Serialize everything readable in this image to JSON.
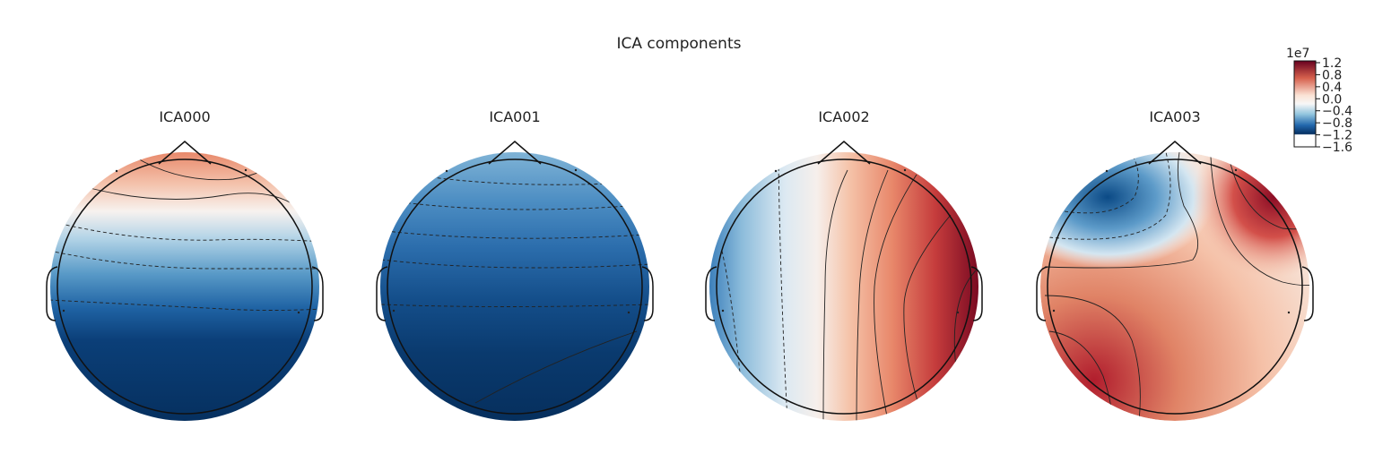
{
  "figure": {
    "title": "ICA components"
  },
  "chart_data": {
    "type": "heatmap",
    "title": "ICA components",
    "colormap": "RdBu_r",
    "panels": [
      {
        "name": "ICA000",
        "pattern": "vertical-gradient-negative-bottom"
      },
      {
        "name": "ICA001",
        "pattern": "mostly-negative"
      },
      {
        "name": "ICA002",
        "pattern": "horizontal-gradient-positive-right"
      },
      {
        "name": "ICA003",
        "pattern": "mixed-negative-upper-left"
      }
    ],
    "colorbar": {
      "exponent_label": "1e7",
      "vmin": -1.6,
      "vmax": 1.2,
      "ticks": [
        1.2,
        0.8,
        0.4,
        0.0,
        -0.4,
        -0.8,
        -1.2,
        -1.6
      ],
      "tick_labels": [
        "1.2",
        "0.8",
        "0.4",
        "0.0",
        "−0.4",
        "−0.8",
        "−1.2",
        "−1.6"
      ],
      "colors": {
        "positive": "#67001f",
        "neutral": "#f7f7f7",
        "negative": "#053061"
      }
    }
  }
}
